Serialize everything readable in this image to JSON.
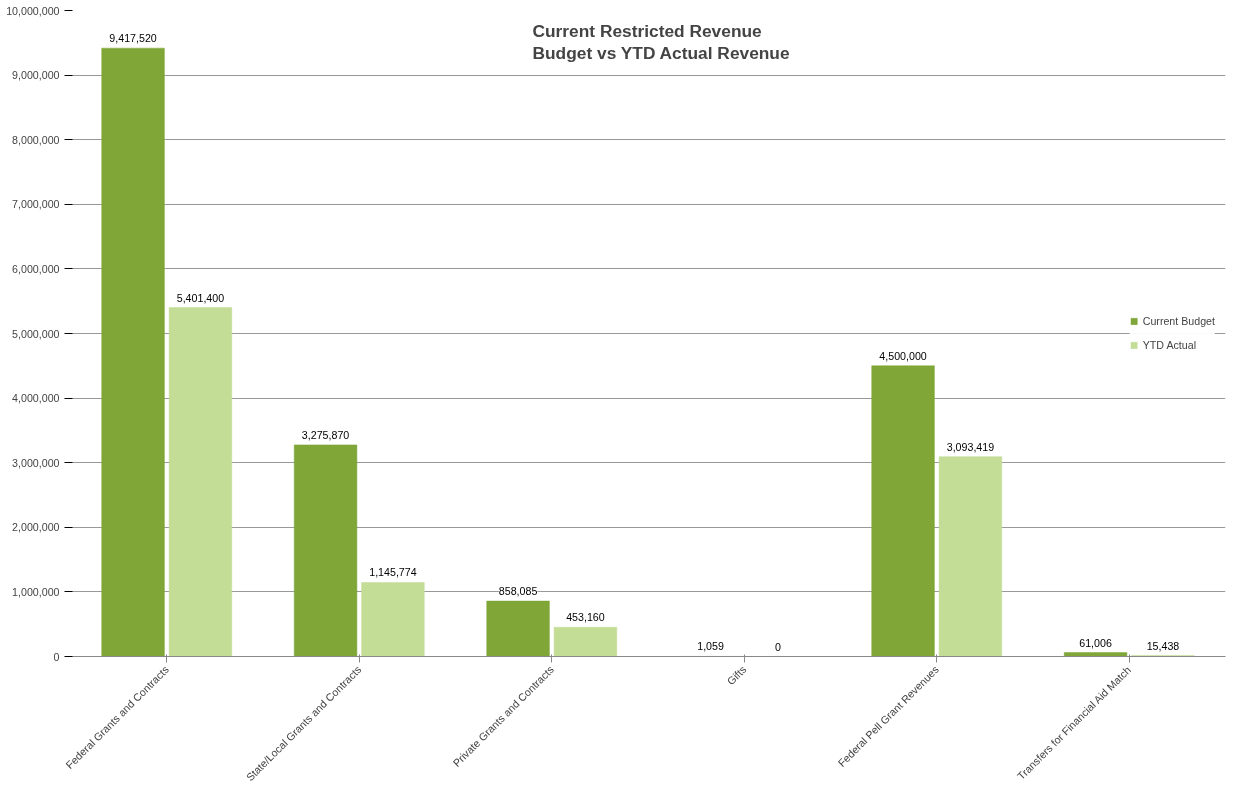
{
  "chart_data": {
    "type": "bar",
    "title": "Current  Restricted Revenue\nBudget vs YTD Actual Revenue",
    "categories": [
      "Federal Grants and Contracts",
      "State/Local Grants and Contracts",
      "Private Grants and Contracts",
      "Gifts",
      "Federal Pell Grant Revenues",
      "Transfers for Financial Aid Match"
    ],
    "series": [
      {
        "name": "Current Budget",
        "color": "#7fa637",
        "values": [
          9417520,
          3275870,
          858085,
          1059,
          4500000,
          61006
        ],
        "value_labels": [
          "9,417,520",
          "3,275,870",
          "858,085",
          "1,059",
          "4,500,000",
          "61,006"
        ]
      },
      {
        "name": "YTD Actual",
        "color": "#c3dc96",
        "values": [
          5401400,
          1145774,
          453160,
          0,
          3093419,
          15438
        ],
        "value_labels": [
          "5,401,400",
          "1,145,774",
          "453,160",
          "0",
          "3,093,419",
          "15,438"
        ]
      }
    ],
    "ylim": [
      0,
      10000000
    ],
    "yticks": [
      {
        "value": 0,
        "label": "0"
      },
      {
        "value": 1000000,
        "label": "1,000,000"
      },
      {
        "value": 2000000,
        "label": "2,000,000"
      },
      {
        "value": 3000000,
        "label": "3,000,000"
      },
      {
        "value": 4000000,
        "label": "4,000,000"
      },
      {
        "value": 5000000,
        "label": "5,000,000"
      },
      {
        "value": 6000000,
        "label": "6,000,000"
      },
      {
        "value": 7000000,
        "label": "7,000,000"
      },
      {
        "value": 8000000,
        "label": "8,000,000"
      },
      {
        "value": 9000000,
        "label": "9,000,000"
      },
      {
        "value": 10000000,
        "label": "10,000,000"
      }
    ],
    "grid": "y",
    "legend": "right"
  }
}
